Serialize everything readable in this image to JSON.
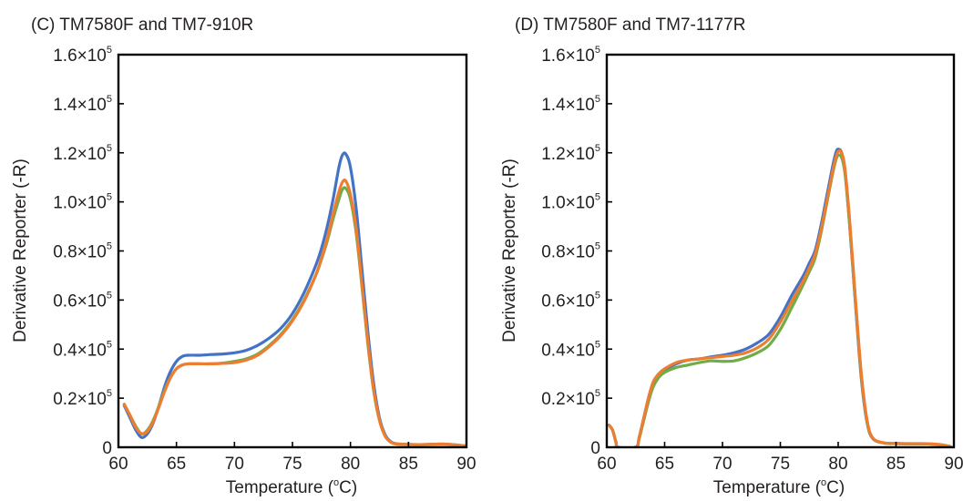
{
  "chart_data": [
    {
      "type": "line",
      "title": "(C) TM7580F and TM7-910R",
      "xlabel": "Temperature (°C)",
      "xlabel_parts": {
        "pre": "Temperature (",
        "sup": "o",
        "post": "C)"
      },
      "ylabel": "Derivative Reporter (-R)",
      "xlim": [
        60,
        90
      ],
      "ylim": [
        0,
        160000
      ],
      "xticks": [
        60,
        65,
        70,
        75,
        80,
        85,
        90
      ],
      "yticks": [
        0,
        20000,
        40000,
        60000,
        80000,
        100000,
        120000,
        140000,
        160000
      ],
      "ytick_labels": [
        {
          "base": "0",
          "exp": ""
        },
        {
          "base": "0.2×10",
          "exp": "5"
        },
        {
          "base": "0.4×10",
          "exp": "5"
        },
        {
          "base": "0.6×10",
          "exp": "5"
        },
        {
          "base": "0.8×10",
          "exp": "5"
        },
        {
          "base": "1.0×10",
          "exp": "5"
        },
        {
          "base": "1.2×10",
          "exp": "5"
        },
        {
          "base": "1.4×10",
          "exp": "5"
        },
        {
          "base": "1.6×10",
          "exp": "5"
        }
      ],
      "grid": false,
      "series": [
        {
          "color": "#4472c4",
          "x": [
            60.5,
            61,
            61.5,
            62,
            62.5,
            63,
            63.5,
            64,
            64.5,
            65,
            65.5,
            66,
            67,
            68,
            69,
            70,
            71,
            72,
            73,
            74,
            75,
            76,
            77,
            77.5,
            78,
            78.5,
            79,
            79.3,
            79.6,
            80,
            80.5,
            81,
            81.5,
            82,
            82.5,
            83,
            83.5,
            84,
            85,
            86,
            87,
            88,
            89,
            90
          ],
          "y": [
            17000,
            12000,
            7000,
            4000,
            5500,
            10000,
            17000,
            25000,
            31000,
            35000,
            37000,
            37500,
            37500,
            37800,
            38000,
            38500,
            39500,
            41500,
            44500,
            48500,
            54500,
            63000,
            74000,
            81000,
            90000,
            101000,
            114000,
            119000,
            119500,
            114000,
            97000,
            72000,
            47000,
            26000,
            12000,
            5000,
            2200,
            1400,
            1200,
            1100,
            1200,
            1300,
            1000,
            500
          ]
        },
        {
          "color": "#70ad47",
          "x": [
            60.5,
            61,
            61.5,
            62,
            62.5,
            63,
            63.5,
            64,
            64.5,
            65,
            65.5,
            66,
            67,
            68,
            69,
            70,
            71,
            72,
            73,
            74,
            75,
            76,
            77,
            77.5,
            78,
            78.5,
            79,
            79.3,
            79.6,
            80,
            80.5,
            81,
            81.5,
            82,
            82.5,
            83,
            83.5,
            84,
            85,
            86,
            87,
            88,
            89,
            90
          ],
          "y": [
            17500,
            13000,
            8500,
            5500,
            7000,
            11000,
            17000,
            23500,
            28500,
            32000,
            33500,
            34000,
            34000,
            34000,
            34300,
            35000,
            36000,
            38000,
            41500,
            46000,
            52000,
            60000,
            70000,
            76500,
            84000,
            93000,
            101000,
            105000,
            105500,
            101000,
            87000,
            65000,
            42000,
            23000,
            11000,
            4500,
            2000,
            1300,
            1100,
            1000,
            1100,
            1200,
            900,
            400
          ]
        },
        {
          "color": "#ed7d31",
          "x": [
            60.5,
            61,
            61.5,
            62,
            62.5,
            63,
            63.5,
            64,
            64.5,
            65,
            65.5,
            66,
            67,
            68,
            69,
            70,
            71,
            72,
            73,
            74,
            75,
            76,
            77,
            77.5,
            78,
            78.5,
            79,
            79.3,
            79.6,
            80,
            80.5,
            81,
            81.5,
            82,
            82.5,
            83,
            83.5,
            84,
            85,
            86,
            87,
            88,
            89,
            90
          ],
          "y": [
            17500,
            13000,
            8000,
            5500,
            6500,
            10500,
            16500,
            23000,
            28500,
            32000,
            33500,
            34000,
            34000,
            34000,
            34200,
            34500,
            35500,
            37500,
            41000,
            45500,
            51500,
            59500,
            70000,
            77000,
            85000,
            95000,
            104000,
            108000,
            108500,
            103000,
            89000,
            66000,
            43000,
            23500,
            11000,
            4500,
            2000,
            1300,
            1100,
            1100,
            1200,
            1300,
            1000,
            500
          ]
        }
      ]
    },
    {
      "type": "line",
      "title": "(D) TM7580F and TM7-1177R",
      "xlabel": "Temperature (°C)",
      "xlabel_parts": {
        "pre": "Temperature (",
        "sup": "o",
        "post": "C)"
      },
      "ylabel": "Derivative Reporter (-R)",
      "xlim": [
        60,
        90
      ],
      "ylim": [
        0,
        160000
      ],
      "xticks": [
        60,
        65,
        70,
        75,
        80,
        85,
        90
      ],
      "yticks": [
        0,
        20000,
        40000,
        60000,
        80000,
        100000,
        120000,
        140000,
        160000
      ],
      "ytick_labels": [
        {
          "base": "0",
          "exp": ""
        },
        {
          "base": "0.2×10",
          "exp": "5"
        },
        {
          "base": "0.4×10",
          "exp": "5"
        },
        {
          "base": "0.6×10",
          "exp": "5"
        },
        {
          "base": "0.8×10",
          "exp": "5"
        },
        {
          "base": "1.0×10",
          "exp": "5"
        },
        {
          "base": "1.2×10",
          "exp": "5"
        },
        {
          "base": "1.4×10",
          "exp": "5"
        },
        {
          "base": "1.6×10",
          "exp": "5"
        }
      ],
      "grid": false,
      "series": [
        {
          "color": "#4472c4",
          "x": [
            60.2,
            60.5,
            60.8,
            61,
            62.5,
            62.8,
            63.2,
            63.6,
            64,
            64.5,
            65,
            66,
            67,
            68,
            69,
            70,
            71,
            72,
            73,
            74,
            75,
            76,
            77,
            77.5,
            78,
            78.5,
            79,
            79.5,
            79.8,
            80,
            80.3,
            80.6,
            81,
            81.5,
            82,
            82.5,
            83,
            84,
            85,
            86,
            87,
            88,
            89,
            89.7
          ],
          "y": [
            9000,
            7000,
            2000,
            0,
            0,
            4000,
            12000,
            20000,
            26000,
            29500,
            31500,
            34000,
            35500,
            36000,
            36800,
            37500,
            38500,
            40000,
            42500,
            46000,
            53000,
            62000,
            70000,
            75000,
            80000,
            90000,
            102000,
            114000,
            120000,
            121500,
            120000,
            112000,
            90000,
            58000,
            28000,
            10000,
            3500,
            1700,
            1500,
            1400,
            1400,
            1300,
            900,
            300
          ]
        },
        {
          "color": "#70ad47",
          "x": [
            60.2,
            60.5,
            60.8,
            61,
            62.5,
            62.8,
            63.2,
            63.6,
            64,
            64.5,
            65,
            66,
            67,
            68,
            69,
            70,
            71,
            72,
            73,
            74,
            75,
            76,
            77,
            77.5,
            78,
            78.5,
            79,
            79.5,
            79.8,
            80,
            80.3,
            80.6,
            81,
            81.5,
            82,
            82.5,
            83,
            84,
            85,
            86,
            87,
            88,
            89,
            89.7
          ],
          "y": [
            9000,
            7000,
            2000,
            0,
            0,
            3500,
            11000,
            18500,
            24500,
            28500,
            30500,
            32500,
            33500,
            34500,
            35200,
            35000,
            35200,
            36500,
            38500,
            41500,
            48000,
            57000,
            66500,
            71500,
            77000,
            87000,
            99000,
            111000,
            117000,
            119000,
            118000,
            111000,
            90000,
            59000,
            29000,
            10500,
            3600,
            1700,
            1500,
            1400,
            1400,
            1300,
            900,
            300
          ]
        },
        {
          "color": "#ed7d31",
          "x": [
            60.2,
            60.5,
            60.8,
            61,
            62.5,
            62.8,
            63.2,
            63.6,
            64,
            64.5,
            65,
            66,
            67,
            68,
            69,
            70,
            71,
            72,
            73,
            74,
            75,
            76,
            77,
            77.5,
            78,
            78.5,
            79,
            79.5,
            79.8,
            80,
            80.3,
            80.6,
            81,
            81.5,
            82,
            82.5,
            83,
            84,
            85,
            86,
            87,
            88,
            89,
            89.7
          ],
          "y": [
            9000,
            7000,
            2000,
            0,
            0,
            4000,
            12000,
            20000,
            26500,
            30000,
            32000,
            34500,
            35500,
            36000,
            36500,
            37000,
            37500,
            38500,
            40500,
            44000,
            51000,
            59500,
            68000,
            73000,
            78500,
            88000,
            100000,
            112000,
            118000,
            120500,
            120000,
            113000,
            92000,
            60000,
            30000,
            11000,
            3700,
            1800,
            1600,
            1500,
            1500,
            1400,
            1000,
            300
          ]
        }
      ]
    }
  ]
}
